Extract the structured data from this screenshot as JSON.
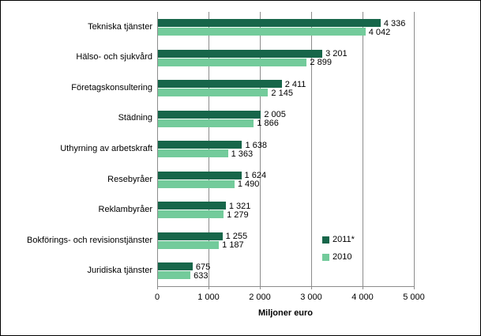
{
  "chart_data": {
    "type": "bar",
    "orientation": "horizontal",
    "categories": [
      "Tekniska tjänster",
      "Hälso- och sjukvård",
      "Företagskonsultering",
      "Städning",
      "Uthyrning av arbetskraft",
      "Resebyråer",
      "Reklambyråer",
      "Bokförings- och revisionstjänster",
      "Juridiska tjänster"
    ],
    "series": [
      {
        "name": "2011*",
        "color": "#17664A",
        "values": [
          4336,
          3201,
          2411,
          2005,
          1638,
          1624,
          1321,
          1255,
          675
        ]
      },
      {
        "name": "2010",
        "color": "#73CB9B",
        "values": [
          4042,
          2899,
          2145,
          1866,
          1363,
          1490,
          1279,
          1187,
          633
        ]
      }
    ],
    "title": "",
    "xlabel": "Miljoner euro",
    "ylabel": "",
    "xlim": [
      0,
      5000
    ],
    "xticks": [
      0,
      1000,
      2000,
      3000,
      4000,
      5000
    ],
    "xtick_labels": [
      "0",
      "1 000",
      "2 000",
      "3 000",
      "4 000",
      "5 000"
    ],
    "value_labels_visible": true,
    "grid": "vertical",
    "legend_position": "middle-right"
  },
  "legend": {
    "items": [
      {
        "label": "2011*",
        "color": "#17664A"
      },
      {
        "label": "2010",
        "color": "#73CB9B"
      }
    ]
  },
  "colors": {
    "series_2011": "#17664A",
    "series_2010": "#73CB9B",
    "gridline": "#8c8c8c",
    "frame_border": "#000000",
    "background": "#ffffff"
  }
}
